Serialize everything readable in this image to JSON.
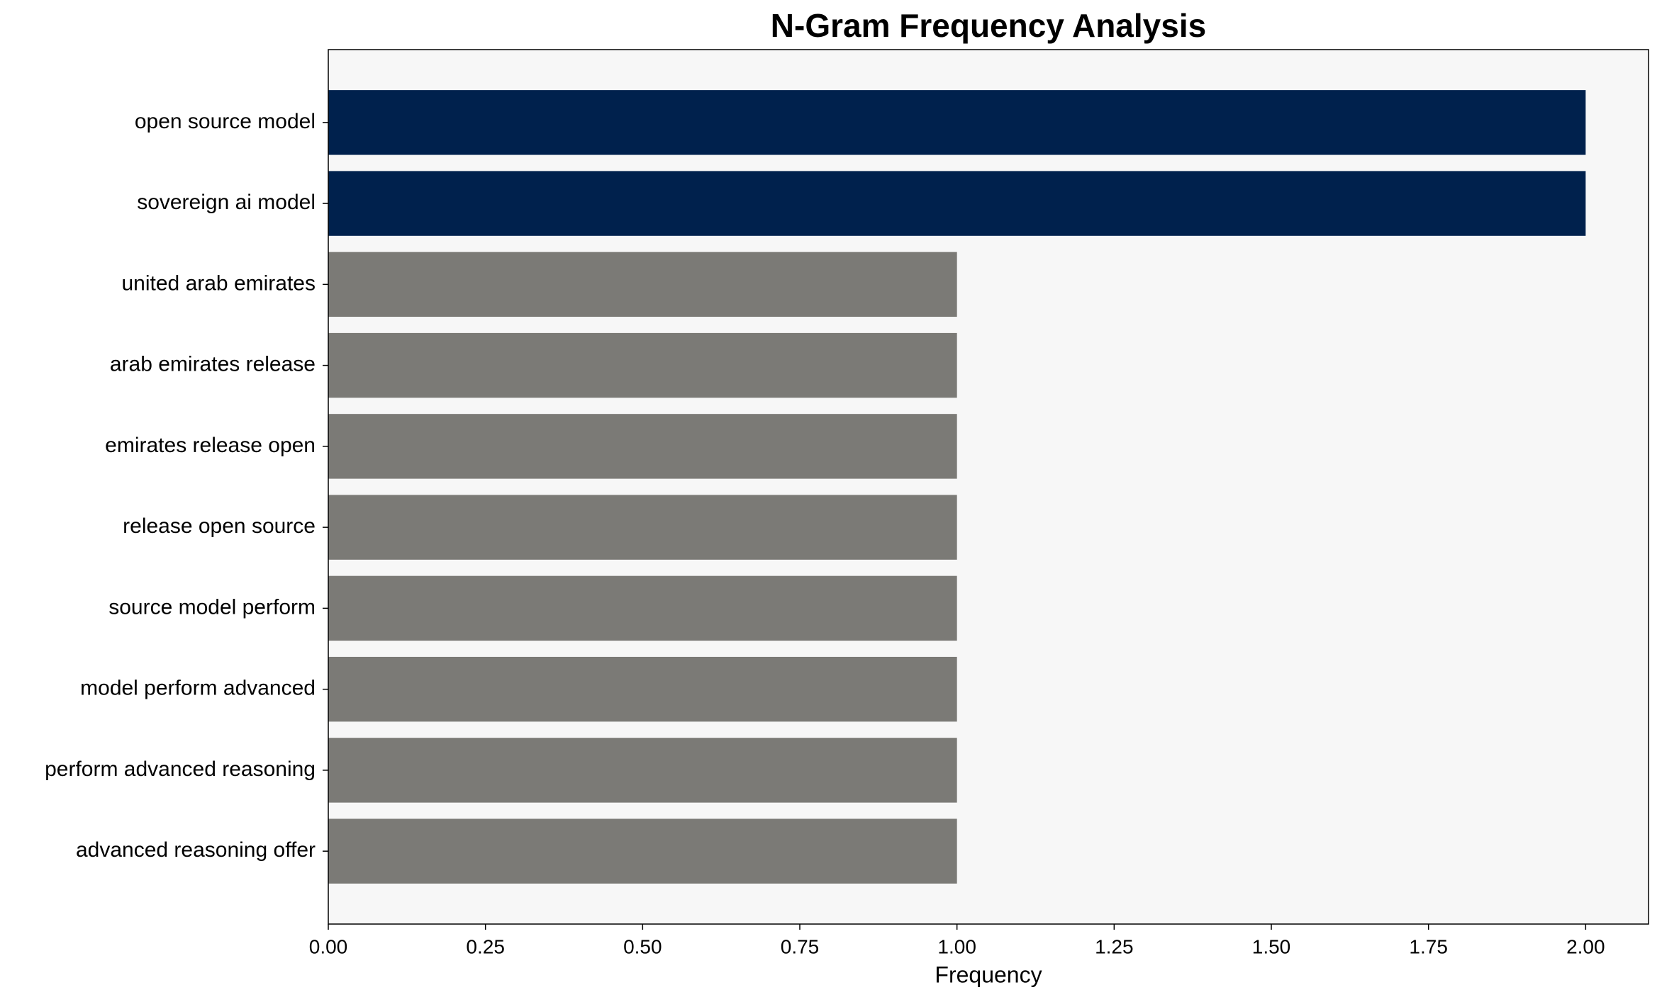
{
  "chart_data": {
    "type": "barh",
    "title": "N-Gram Frequency Analysis",
    "x_label": "Frequency",
    "categories": [
      "open source model",
      "sovereign ai model",
      "united arab emirates",
      "arab emirates release",
      "emirates release open",
      "release open source",
      "source model perform",
      "model perform advanced",
      "perform advanced reasoning",
      "advanced reasoning offer"
    ],
    "values": [
      2,
      2,
      1,
      1,
      1,
      1,
      1,
      1,
      1,
      1
    ],
    "colors": [
      "#00214d",
      "#00214d",
      "#7b7a76",
      "#7b7a76",
      "#7b7a76",
      "#7b7a76",
      "#7b7a76",
      "#7b7a76",
      "#7b7a76",
      "#7b7a76"
    ],
    "xlim": [
      0,
      2.1
    ],
    "xticks": [
      {
        "value": 0,
        "label": "0.00"
      },
      {
        "value": 0.25,
        "label": "0.25"
      },
      {
        "value": 0.5,
        "label": "0.50"
      },
      {
        "value": 0.75,
        "label": "0.75"
      },
      {
        "value": 1,
        "label": "1.00"
      },
      {
        "value": 1.25,
        "label": "1.25"
      },
      {
        "value": 1.5,
        "label": "1.50"
      },
      {
        "value": 1.75,
        "label": "1.75"
      },
      {
        "value": 2,
        "label": "2.00"
      }
    ],
    "background": "#f7f7f7"
  }
}
